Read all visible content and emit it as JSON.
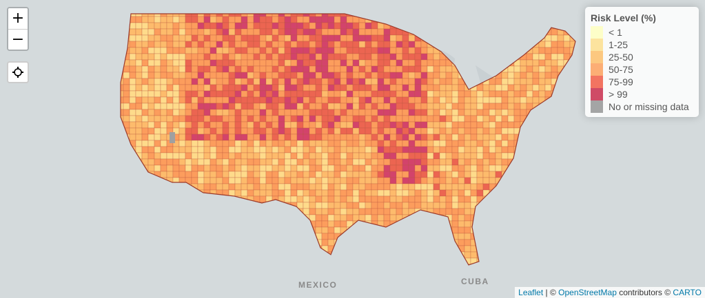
{
  "map": {
    "labels": {
      "mexico": "MEXICO",
      "cuba": "CUBA"
    }
  },
  "controls": {
    "zoom_in": "+",
    "zoom_out": "−",
    "locate_icon": "crosshair-locate-icon"
  },
  "legend": {
    "title": "Risk Level (%)",
    "items": [
      {
        "label": "< 1",
        "color": "#ffffb2"
      },
      {
        "label": "1-25",
        "color": "#fed976"
      },
      {
        "label": "25-50",
        "color": "#feb24c"
      },
      {
        "label": "50-75",
        "color": "#fd8d3c"
      },
      {
        "label": "75-99",
        "color": "#f03b20"
      },
      {
        "label": "> 99",
        "color": "#bd0026"
      },
      {
        "label": "No or missing data",
        "color": "#808080"
      }
    ]
  },
  "attribution": {
    "leaflet": "Leaflet",
    "sep1": " | © ",
    "osm": "OpenStreetMap",
    "mid": " contributors © ",
    "carto": "CARTO"
  }
}
